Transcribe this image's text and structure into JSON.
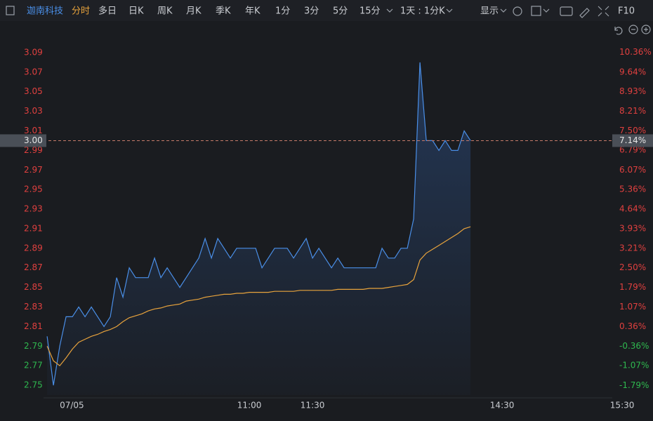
{
  "toolbar": {
    "stock": "迦南科技",
    "active_tab": "分时",
    "tabs": [
      "多日",
      "日K",
      "周K",
      "月K",
      "季K",
      "年K",
      "1分",
      "3分",
      "5分",
      "15分"
    ],
    "period": "1天 : 1分K",
    "display": "显示",
    "f10": "F10"
  },
  "chart_data": {
    "type": "line",
    "x": [
      -6,
      -3,
      0,
      3,
      6,
      9,
      12,
      15,
      18,
      21,
      24,
      27,
      30,
      33,
      36,
      39,
      42,
      45,
      48,
      51,
      54,
      57,
      60,
      63,
      66,
      69,
      72,
      75,
      78,
      81,
      84,
      87,
      90,
      93,
      96,
      99,
      102,
      105,
      108,
      111,
      114,
      117,
      120,
      123,
      126,
      129,
      132,
      135,
      138,
      141,
      144,
      147,
      150,
      153,
      156,
      159,
      162,
      165,
      168,
      171,
      174,
      177,
      180,
      183,
      186,
      189,
      192,
      195
    ],
    "series": [
      {
        "color": "#4a8fe8",
        "values": [
          2.8,
          2.75,
          2.79,
          2.82,
          2.82,
          2.83,
          2.82,
          2.83,
          2.82,
          2.81,
          2.82,
          2.86,
          2.84,
          2.87,
          2.86,
          2.86,
          2.86,
          2.88,
          2.86,
          2.87,
          2.86,
          2.85,
          2.86,
          2.87,
          2.88,
          2.9,
          2.88,
          2.9,
          2.89,
          2.88,
          2.89,
          2.89,
          2.89,
          2.89,
          2.87,
          2.88,
          2.89,
          2.89,
          2.89,
          2.88,
          2.89,
          2.9,
          2.88,
          2.89,
          2.88,
          2.87,
          2.88,
          2.87,
          2.87,
          2.87,
          2.87,
          2.87,
          2.87,
          2.89,
          2.88,
          2.88,
          2.89,
          2.89,
          2.92,
          3.08,
          3.0,
          3.0,
          2.99,
          3.0,
          2.99,
          2.99,
          3.01,
          3.0
        ]
      },
      {
        "color": "#e8a33c",
        "values": [
          2.79,
          2.775,
          2.77,
          2.778,
          2.787,
          2.794,
          2.797,
          2.8,
          2.802,
          2.805,
          2.807,
          2.81,
          2.815,
          2.819,
          2.821,
          2.823,
          2.826,
          2.828,
          2.829,
          2.831,
          2.832,
          2.833,
          2.836,
          2.837,
          2.838,
          2.84,
          2.841,
          2.842,
          2.843,
          2.843,
          2.844,
          2.844,
          2.845,
          2.845,
          2.845,
          2.845,
          2.846,
          2.846,
          2.846,
          2.846,
          2.847,
          2.847,
          2.847,
          2.847,
          2.847,
          2.847,
          2.848,
          2.848,
          2.848,
          2.848,
          2.848,
          2.849,
          2.849,
          2.849,
          2.85,
          2.851,
          2.852,
          2.853,
          2.858,
          2.878,
          2.885,
          2.889,
          2.893,
          2.897,
          2.901,
          2.905,
          2.91,
          2.912
        ]
      }
    ],
    "xlim": [
      -7.7,
      262.3
    ],
    "xticks": [
      {
        "value": 0,
        "label": "07/05"
      },
      {
        "value": 90,
        "label": "11:00"
      },
      {
        "value": 120,
        "label": "11:30"
      },
      {
        "value": 210,
        "label": "14:30"
      },
      {
        "value": 267,
        "label": "15:30"
      }
    ],
    "ylim": [
      2.74,
      3.1
    ],
    "yticks": [
      3.09,
      3.07,
      3.05,
      3.03,
      3.01,
      2.99,
      2.97,
      2.95,
      2.93,
      2.91,
      2.89,
      2.87,
      2.85,
      2.83,
      2.81,
      2.79,
      2.77,
      2.75
    ],
    "y2lim": [
      -2.14,
      10.71
    ],
    "y2ticks": [
      {
        "value": 10.36,
        "label": "10.36%"
      },
      {
        "value": 9.64,
        "label": "9.64%"
      },
      {
        "value": 8.93,
        "label": "8.93%"
      },
      {
        "value": 8.21,
        "label": "8.21%"
      },
      {
        "value": 7.5,
        "label": "7.50%"
      },
      {
        "value": 6.79,
        "label": "6.79%"
      },
      {
        "value": 6.07,
        "label": "6.07%"
      },
      {
        "value": 5.36,
        "label": "5.36%"
      },
      {
        "value": 4.64,
        "label": "4.64%"
      },
      {
        "value": 3.93,
        "label": "3.93%"
      },
      {
        "value": 3.21,
        "label": "3.21%"
      },
      {
        "value": 2.5,
        "label": "2.50%"
      },
      {
        "value": 1.79,
        "label": "1.79%"
      },
      {
        "value": 1.07,
        "label": "1.07%"
      },
      {
        "value": 0.36,
        "label": "0.36%"
      },
      {
        "value": -0.36,
        "label": "-0.36%"
      },
      {
        "value": -1.07,
        "label": "-1.07%"
      },
      {
        "value": -1.79,
        "label": "-1.79%"
      }
    ],
    "last_price": {
      "value": 3.0,
      "label": "3.00"
    },
    "last_change": {
      "value": 7.14,
      "label": "7.14%"
    }
  }
}
